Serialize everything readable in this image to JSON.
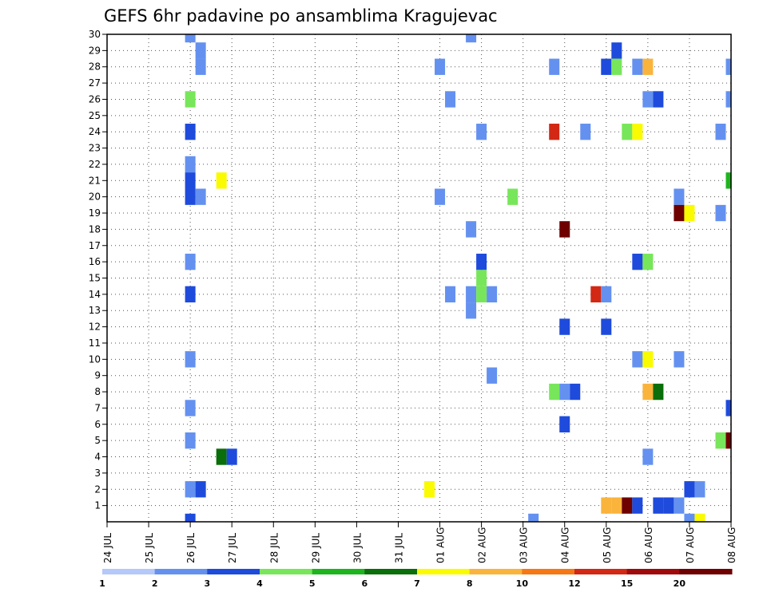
{
  "chart_data": {
    "type": "heatmap",
    "title": "GEFS 6hr padavine po ansamblima Kragujevac",
    "x_tick_labels": [
      "24 JUL",
      "25 JUL",
      "26 JUL",
      "27 JUL",
      "28 JUL",
      "29 JUL",
      "30 JUL",
      "31 JUL",
      "01 AUG",
      "02 AUG",
      "03 AUG",
      "04 AUG",
      "05 AUG",
      "06 AUG",
      "07 AUG",
      "08 AUG"
    ],
    "x_range_days": [
      0,
      15
    ],
    "y_tick_labels": [
      "1",
      "2",
      "3",
      "4",
      "5",
      "6",
      "7",
      "8",
      "9",
      "10",
      "11",
      "12",
      "13",
      "14",
      "15",
      "16",
      "17",
      "18",
      "19",
      "20",
      "21",
      "22",
      "23",
      "24",
      "25",
      "26",
      "27",
      "28",
      "29",
      "30"
    ],
    "y_range": [
      0,
      30
    ],
    "grid": true,
    "legend": {
      "placement": "bottom",
      "levels": [
        "1",
        "2",
        "3",
        "4",
        "5",
        "6",
        "7",
        "8",
        "10",
        "12",
        "15",
        "20"
      ],
      "colors": [
        "#b4c8fa",
        "#6491f0",
        "#1e4bdc",
        "#78e65a",
        "#1eb41e",
        "#0a6e0a",
        "#fafa00",
        "#fab43c",
        "#f57814",
        "#d22814",
        "#a00a0a",
        "#6e0000"
      ]
    },
    "cells": [
      {
        "d": 2.0,
        "m": 30,
        "c": 1
      },
      {
        "d": 2.25,
        "m": 29,
        "c": 1
      },
      {
        "d": 2.25,
        "m": 28,
        "c": 1
      },
      {
        "d": 2.0,
        "m": 26,
        "c": 3
      },
      {
        "d": 2.0,
        "m": 24,
        "c": 2
      },
      {
        "d": 2.0,
        "m": 22,
        "c": 1
      },
      {
        "d": 2.0,
        "m": 21,
        "c": 2
      },
      {
        "d": 2.0,
        "m": 20,
        "c": 2
      },
      {
        "d": 2.25,
        "m": 20,
        "c": 1
      },
      {
        "d": 2.75,
        "m": 21,
        "c": 6
      },
      {
        "d": 2.0,
        "m": 16,
        "c": 1
      },
      {
        "d": 2.0,
        "m": 14,
        "c": 2
      },
      {
        "d": 2.0,
        "m": 10,
        "c": 1
      },
      {
        "d": 2.0,
        "m": 7,
        "c": 1
      },
      {
        "d": 2.0,
        "m": 5,
        "c": 1
      },
      {
        "d": 2.75,
        "m": 4,
        "c": 5
      },
      {
        "d": 3.0,
        "m": 4,
        "c": 2
      },
      {
        "d": 2.0,
        "m": 2,
        "c": 1
      },
      {
        "d": 2.25,
        "m": 2,
        "c": 2
      },
      {
        "d": 2.0,
        "m": 0,
        "c": 2
      },
      {
        "d": 7.75,
        "m": 2,
        "c": 6
      },
      {
        "d": 8.0,
        "m": 28,
        "c": 1
      },
      {
        "d": 8.0,
        "m": 20,
        "c": 1
      },
      {
        "d": 8.25,
        "m": 26,
        "c": 1
      },
      {
        "d": 8.25,
        "m": 14,
        "c": 1
      },
      {
        "d": 8.75,
        "m": 30,
        "c": 1
      },
      {
        "d": 8.75,
        "m": 18,
        "c": 1
      },
      {
        "d": 8.75,
        "m": 14,
        "c": 1
      },
      {
        "d": 8.75,
        "m": 13,
        "c": 1
      },
      {
        "d": 9.0,
        "m": 24,
        "c": 1
      },
      {
        "d": 9.0,
        "m": 16,
        "c": 2
      },
      {
        "d": 9.0,
        "m": 15,
        "c": 3
      },
      {
        "d": 9.0,
        "m": 14,
        "c": 3
      },
      {
        "d": 9.25,
        "m": 14,
        "c": 1
      },
      {
        "d": 9.25,
        "m": 9,
        "c": 1
      },
      {
        "d": 9.75,
        "m": 20,
        "c": 3
      },
      {
        "d": 10.25,
        "m": 0,
        "c": 1
      },
      {
        "d": 10.75,
        "m": 28,
        "c": 1
      },
      {
        "d": 10.75,
        "m": 24,
        "c": 9
      },
      {
        "d": 10.75,
        "m": 8,
        "c": 3
      },
      {
        "d": 11.0,
        "m": 18,
        "c": 11
      },
      {
        "d": 11.0,
        "m": 12,
        "c": 2
      },
      {
        "d": 11.0,
        "m": 8,
        "c": 1
      },
      {
        "d": 11.0,
        "m": 6,
        "c": 2
      },
      {
        "d": 11.25,
        "m": 8,
        "c": 2
      },
      {
        "d": 11.5,
        "m": 24,
        "c": 1
      },
      {
        "d": 11.75,
        "m": 14,
        "c": 9
      },
      {
        "d": 12.0,
        "m": 14,
        "c": 1
      },
      {
        "d": 12.0,
        "m": 28,
        "c": 2
      },
      {
        "d": 12.25,
        "m": 29,
        "c": 2
      },
      {
        "d": 12.25,
        "m": 28,
        "c": 3
      },
      {
        "d": 12.0,
        "m": 12,
        "c": 2
      },
      {
        "d": 12.0,
        "m": 1,
        "c": 7
      },
      {
        "d": 12.25,
        "m": 1,
        "c": 7
      },
      {
        "d": 12.5,
        "m": 1,
        "c": 11
      },
      {
        "d": 12.75,
        "m": 1,
        "c": 2
      },
      {
        "d": 12.5,
        "m": 24,
        "c": 3
      },
      {
        "d": 12.75,
        "m": 24,
        "c": 6
      },
      {
        "d": 12.75,
        "m": 28,
        "c": 1
      },
      {
        "d": 13.0,
        "m": 28,
        "c": 7
      },
      {
        "d": 12.75,
        "m": 16,
        "c": 2
      },
      {
        "d": 13.0,
        "m": 16,
        "c": 3
      },
      {
        "d": 12.75,
        "m": 10,
        "c": 1
      },
      {
        "d": 13.0,
        "m": 10,
        "c": 6
      },
      {
        "d": 13.0,
        "m": 26,
        "c": 1
      },
      {
        "d": 13.25,
        "m": 26,
        "c": 2
      },
      {
        "d": 13.0,
        "m": 8,
        "c": 7
      },
      {
        "d": 13.25,
        "m": 8,
        "c": 5
      },
      {
        "d": 13.0,
        "m": 4,
        "c": 1
      },
      {
        "d": 13.25,
        "m": 1,
        "c": 2
      },
      {
        "d": 13.5,
        "m": 1,
        "c": 2
      },
      {
        "d": 13.75,
        "m": 1,
        "c": 1
      },
      {
        "d": 13.75,
        "m": 20,
        "c": 1
      },
      {
        "d": 13.75,
        "m": 19,
        "c": 11
      },
      {
        "d": 14.0,
        "m": 19,
        "c": 6
      },
      {
        "d": 13.75,
        "m": 10,
        "c": 1
      },
      {
        "d": 14.0,
        "m": 2,
        "c": 2
      },
      {
        "d": 14.25,
        "m": 2,
        "c": 1
      },
      {
        "d": 14.0,
        "m": 0,
        "c": 1
      },
      {
        "d": 14.25,
        "m": 0,
        "c": 6
      },
      {
        "d": 14.75,
        "m": 24,
        "c": 1
      },
      {
        "d": 14.75,
        "m": 19,
        "c": 1
      },
      {
        "d": 14.75,
        "m": 5,
        "c": 3
      },
      {
        "d": 15.0,
        "m": 5,
        "c": 11
      },
      {
        "d": 15.0,
        "m": 28,
        "c": 1
      },
      {
        "d": 15.0,
        "m": 26,
        "c": 1
      },
      {
        "d": 15.0,
        "m": 21,
        "c": 4
      },
      {
        "d": 15.0,
        "m": 7,
        "c": 2
      }
    ]
  }
}
